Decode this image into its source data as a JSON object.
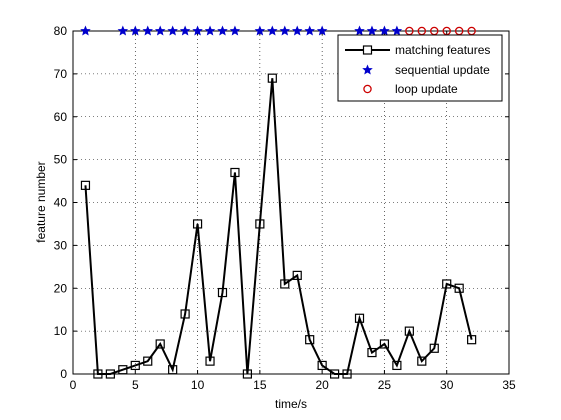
{
  "chart_data": {
    "type": "line",
    "xlabel": "time/s",
    "ylabel": "feature number",
    "xlim": [
      0,
      35
    ],
    "ylim": [
      0,
      80
    ],
    "xticks": [
      0,
      5,
      10,
      15,
      20,
      25,
      30,
      35
    ],
    "yticks": [
      0,
      10,
      20,
      30,
      40,
      50,
      60,
      70,
      80
    ],
    "grid": true,
    "legend_position": "top-right",
    "series": [
      {
        "name": "matching features",
        "marker": "square",
        "color": "#000000",
        "x": [
          1,
          2,
          3,
          4,
          5,
          6,
          7,
          8,
          9,
          10,
          11,
          12,
          13,
          14,
          15,
          16,
          17,
          18,
          19,
          20,
          21,
          22,
          23,
          24,
          25,
          26,
          27,
          28,
          29,
          30,
          31,
          32
        ],
        "y": [
          44,
          0,
          0,
          1,
          2,
          3,
          7,
          1,
          14,
          35,
          3,
          19,
          47,
          0,
          35,
          69,
          21,
          23,
          8,
          2,
          0,
          0,
          13,
          5,
          7,
          2,
          10,
          3,
          6,
          21,
          20,
          8
        ]
      },
      {
        "name": "sequential update",
        "marker": "star",
        "color": "#0000cc",
        "x": [
          1,
          4,
          5,
          6,
          7,
          8,
          9,
          10,
          11,
          12,
          13,
          15,
          16,
          17,
          18,
          19,
          20,
          23,
          24,
          25,
          26
        ],
        "y": [
          80,
          80,
          80,
          80,
          80,
          80,
          80,
          80,
          80,
          80,
          80,
          80,
          80,
          80,
          80,
          80,
          80,
          80,
          80,
          80,
          80
        ]
      },
      {
        "name": "loop update",
        "marker": "circle",
        "color": "#cc0000",
        "x": [
          27,
          28,
          29,
          30,
          31,
          32
        ],
        "y": [
          80,
          80,
          80,
          80,
          80,
          80
        ]
      }
    ]
  }
}
